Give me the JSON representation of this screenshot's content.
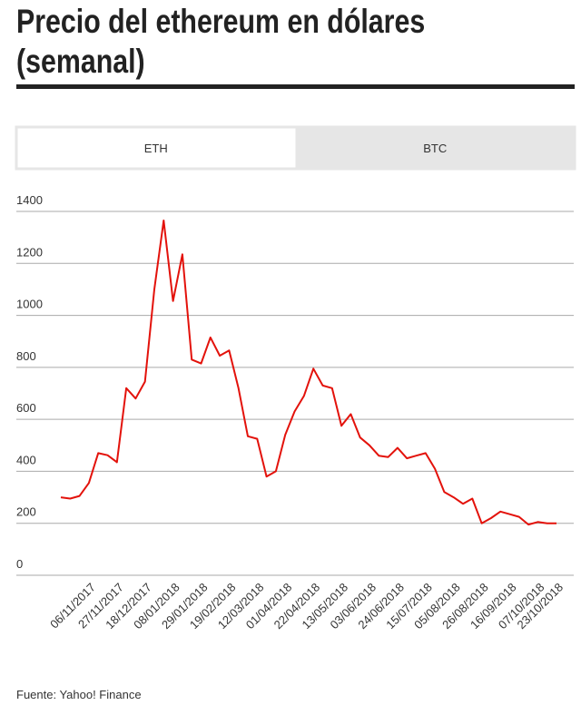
{
  "chart_data": {
    "type": "line",
    "title": "Precio del ethereum en dólares (semanal)",
    "tabs": [
      "ETH",
      "BTC"
    ],
    "active_tab": 0,
    "source": "Fuente:  Yahoo! Finance",
    "categories": [
      null,
      null,
      null,
      "06/11/2017",
      null,
      null,
      "27/11/2017",
      null,
      null,
      "18/12/2017",
      null,
      null,
      "08/01/2018",
      null,
      null,
      "29/01/2018",
      null,
      null,
      "19/02/2018",
      null,
      null,
      "12/03/2018",
      null,
      null,
      "01/04/2018",
      null,
      null,
      "22/04/2018",
      null,
      null,
      "13/05/2018",
      null,
      null,
      "03/06/2018",
      null,
      null,
      "24/06/2018",
      null,
      null,
      "15/07/2018",
      null,
      null,
      "05/08/2018",
      null,
      null,
      "26/08/2018",
      null,
      null,
      "16/09/2018",
      null,
      null,
      "07/10/2018",
      null,
      "23/10/2018"
    ],
    "series": [
      {
        "name": "ETH",
        "color": "#e3120b",
        "values": [
          300,
          295,
          305,
          355,
          470,
          462,
          435,
          720,
          680,
          745,
          1100,
          1365,
          1055,
          1235,
          830,
          815,
          915,
          845,
          865,
          720,
          535,
          525,
          380,
          400,
          540,
          630,
          690,
          795,
          730,
          720,
          575,
          620,
          530,
          500,
          460,
          455,
          490,
          450,
          460,
          470,
          410,
          320,
          300,
          275,
          295,
          200,
          220,
          245,
          235,
          225,
          195,
          205,
          200,
          200
        ]
      }
    ],
    "ylim": [
      0,
      1400
    ],
    "yticks": [
      0,
      200,
      400,
      600,
      800,
      1000,
      1200,
      1400
    ],
    "grid": true
  }
}
